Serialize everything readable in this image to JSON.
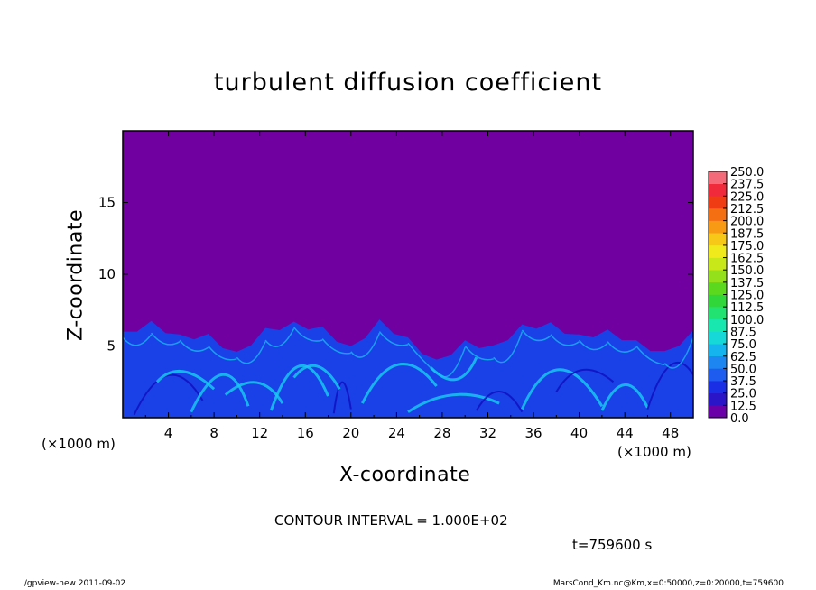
{
  "chart_data": {
    "type": "heatmap",
    "title": "turbulent diffusion coefficient",
    "xlabel": "X-coordinate",
    "ylabel": "Z-coordinate",
    "x_unit": "(×1000 m)",
    "x_unit_right": "(×1000 m)",
    "xlim": [
      0,
      50
    ],
    "ylim": [
      0,
      20
    ],
    "x_ticks": [
      4,
      8,
      12,
      16,
      20,
      24,
      28,
      32,
      36,
      40,
      44,
      48
    ],
    "y_ticks": [
      5,
      10,
      15
    ],
    "colorbar_levels": [
      "0.0",
      "12.5",
      "25.0",
      "37.5",
      "50.0",
      "62.5",
      "75.0",
      "87.5",
      "100.0",
      "112.5",
      "125.0",
      "137.5",
      "150.0",
      "162.5",
      "175.0",
      "187.5",
      "200.0",
      "212.5",
      "225.0",
      "237.5",
      "250.0"
    ],
    "colorbar_colors": [
      "#6a00a8",
      "#2a16c8",
      "#1a2ee6",
      "#1e5cf0",
      "#1e86f0",
      "#16b4ee",
      "#16d8d8",
      "#18e8b0",
      "#22e272",
      "#30d63a",
      "#5cd81e",
      "#94e01a",
      "#c8e81a",
      "#f0ea1c",
      "#f8c818",
      "#f89a14",
      "#f46e12",
      "#f03c14",
      "#f02a3a",
      "#f46a78"
    ],
    "background_value": 0.0,
    "turbulent_layer_top_z": [
      6.2,
      6.5,
      6.0,
      5.6,
      4.8,
      6.0,
      6.9,
      6.1,
      5.2,
      6.6,
      5.8,
      3.8,
      5.6,
      4.8,
      6.7,
      6.4,
      6.0,
      5.9,
      5.6,
      4.4,
      6.3
    ],
    "turbulent_layer_x": [
      0,
      2.5,
      5,
      7.5,
      10,
      12.5,
      15,
      17.5,
      20,
      22.5,
      25,
      27.5,
      30,
      32.5,
      35,
      37.5,
      40,
      42.5,
      45,
      47.5,
      50
    ],
    "contour_interval_text": "CONTOUR INTERVAL = 1.000E+02",
    "time_text": "t=759600 s"
  },
  "footer": {
    "left": "./gpview-new   2011-09-02",
    "right": "MarsCond_Km.nc@Km,x=0:50000,z=0:20000,t=759600"
  },
  "colors": {
    "background_fill": "#7000a0",
    "layer_base": "#1a40e8",
    "streak": "#18c8f0",
    "dark_streak": "#1010c0"
  }
}
